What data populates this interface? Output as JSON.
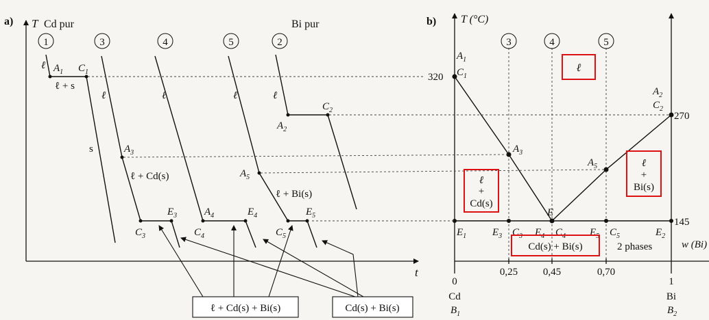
{
  "colors": {
    "ink": "#111111",
    "highlight": "#dd1111",
    "background": "#f7f5f2"
  },
  "panel_a": {
    "label": "a)",
    "y_axis": "T",
    "x_axis": "t",
    "title_cd": "Cd pur",
    "title_bi": "Bi pur",
    "curves": [
      "1",
      "3",
      "4",
      "5",
      "2"
    ],
    "phase_l": "ℓ",
    "phase_l_s": "ℓ + s",
    "phase_s": "s",
    "phase_l_cd": "ℓ + Cd(s)",
    "phase_l_bi": "ℓ + Bi(s)",
    "pts": {
      "A1": "A",
      "A1s": "1",
      "C1": "C",
      "C1s": "1",
      "A2": "A",
      "A2s": "2",
      "C2": "C",
      "C2s": "2",
      "A3": "A",
      "A3s": "3",
      "C3": "C",
      "C3s": "3",
      "E3": "E",
      "E3s": "3",
      "A4": "A",
      "A4s": "4",
      "C4": "C",
      "C4s": "4",
      "E4": "E",
      "E4s": "4",
      "A5": "A",
      "A5s": "5",
      "C5": "C",
      "C5s": "5",
      "E5": "E",
      "E5s": "5"
    },
    "box_three_phase": "ℓ + Cd(s) + Bi(s)",
    "box_two_solids": "Cd(s) + Bi(s)"
  },
  "panel_b": {
    "label": "b)",
    "y_axis": "T (°C)",
    "x_axis": "w (Bi)",
    "t_ticks": [
      "320",
      "270",
      "145"
    ],
    "x_ticks": [
      "0",
      "0,25",
      "0,45",
      "0,70",
      "1"
    ],
    "x_left_label": "Cd",
    "x_right_label": "Bi",
    "b1": "B",
    "b1s": "1",
    "b2": "B",
    "b2s": "2",
    "circles": [
      "3",
      "4",
      "5"
    ],
    "pts": {
      "A1": "A",
      "A1s": "1",
      "C1": "C",
      "C1s": "1",
      "A2": "A",
      "A2s": "2",
      "C2": "C",
      "C2s": "2",
      "A3": "A",
      "A3s": "3",
      "A5": "A",
      "A5s": "5",
      "E": "E",
      "E1": "E",
      "E1s": "1",
      "E2": "E",
      "E2s": "2",
      "E3": "E",
      "E3s": "3",
      "C3": "C",
      "C3s": "3",
      "E4": "E",
      "E4s": "4",
      "C4": "C",
      "C4s": "4",
      "E5": "E",
      "E5s": "5",
      "C5": "C",
      "C5s": "5"
    },
    "liquid_box": "ℓ",
    "left_box": [
      "ℓ",
      "+",
      "Cd(s)"
    ],
    "right_box": [
      "ℓ",
      "+",
      "Bi(s)"
    ],
    "bottom_box": "Cd(s) + Bi(s)",
    "two_phases": "2 phases"
  }
}
